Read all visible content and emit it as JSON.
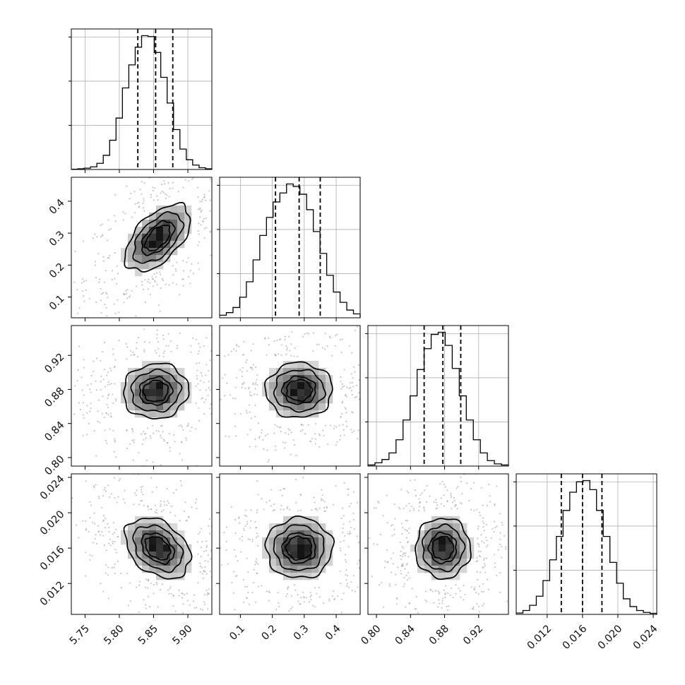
{
  "chart_data": {
    "type": "corner",
    "title": "",
    "variables": [
      {
        "index": 0,
        "range": [
          5.73,
          5.935
        ],
        "ticks": [
          "5.75",
          "5.80",
          "5.85",
          "5.90"
        ],
        "quantiles": [
          5.827,
          5.853,
          5.878
        ],
        "hist_counts": [
          0.3,
          0.8,
          1.5,
          3,
          7,
          16,
          33,
          58,
          92,
          118,
          138,
          151,
          150,
          132,
          104,
          75,
          45,
          23,
          11,
          5,
          2,
          0.8
        ]
      },
      {
        "index": 1,
        "range": [
          0.035,
          0.475
        ],
        "ticks": [
          "0.1",
          "0.2",
          "0.3",
          "0.4"
        ],
        "quantiles": [
          0.21,
          0.284,
          0.35
        ],
        "hist_counts": [
          2,
          4,
          8,
          16,
          28,
          45,
          64,
          78,
          90,
          97,
          104,
          102,
          96,
          84,
          67,
          50,
          33,
          20,
          12,
          6,
          3
        ]
      },
      {
        "index": 2,
        "range": [
          0.79,
          0.955
        ],
        "ticks": [
          "0.80",
          "0.84",
          "0.88",
          "0.92"
        ],
        "quantiles": [
          0.856,
          0.878,
          0.899
        ],
        "hist_counts": [
          1,
          3,
          6,
          12,
          24,
          42,
          64,
          88,
          107,
          120,
          122,
          110,
          89,
          64,
          42,
          24,
          12,
          5,
          2,
          1
        ]
      },
      {
        "index": 3,
        "range": [
          0.0085,
          0.0244
        ],
        "ticks": [
          "0.012",
          "0.016",
          "0.020",
          "0.024"
        ],
        "quantiles": [
          0.0136,
          0.016,
          0.0182
        ],
        "hist_counts": [
          1,
          3,
          7,
          14,
          26,
          42,
          60,
          80,
          94,
          102,
          103,
          96,
          80,
          60,
          40,
          24,
          12,
          6,
          3,
          1.5,
          0.8
        ]
      }
    ],
    "pairs": [
      {
        "row": 1,
        "col": 0,
        "mean_x": 5.856,
        "mean_y": 0.285,
        "sd_x": 0.025,
        "sd_y": 0.055,
        "rho": 0.55
      },
      {
        "row": 2,
        "col": 0,
        "mean_x": 5.853,
        "mean_y": 0.878,
        "sd_x": 0.025,
        "sd_y": 0.017,
        "rho": 0.05
      },
      {
        "row": 2,
        "col": 1,
        "mean_x": 0.284,
        "mean_y": 0.879,
        "sd_x": 0.055,
        "sd_y": 0.017,
        "rho": 0.0
      },
      {
        "row": 3,
        "col": 0,
        "mean_x": 5.856,
        "mean_y": 0.016,
        "sd_x": 0.025,
        "sd_y": 0.0018,
        "rho": -0.35
      },
      {
        "row": 3,
        "col": 1,
        "mean_x": 0.284,
        "mean_y": 0.016,
        "sd_x": 0.055,
        "sd_y": 0.0018,
        "rho": 0.0
      },
      {
        "row": 3,
        "col": 2,
        "mean_x": 0.878,
        "mean_y": 0.016,
        "sd_x": 0.017,
        "sd_y": 0.0018,
        "rho": 0.0
      }
    ],
    "contour_levels_sigma": [
      0.5,
      1.0,
      1.5,
      2.0
    ],
    "grid": true,
    "colors": {
      "line": "#000000",
      "grid": "#b0b0b0",
      "points": "#9a9a9a",
      "axes": "#000000"
    }
  }
}
